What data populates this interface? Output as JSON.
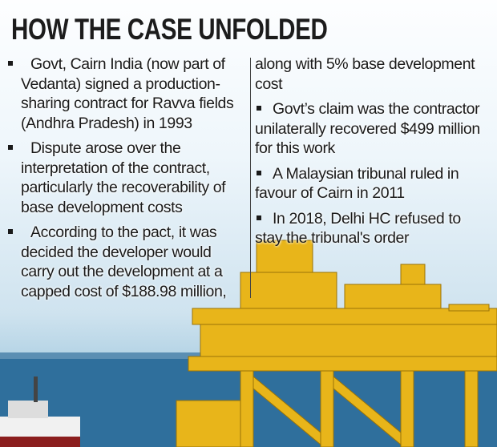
{
  "header": {
    "title": "HOW THE CASE UNFOLDED"
  },
  "left_column": {
    "items": [
      "Govt, Cairn India (now part of Vedanta) signed a production-sharing contract for Ravva fields (Andhra Pradesh) in 1993",
      "Dispute arose over the interpretation of the contract, particularly the recoverability of base development costs",
      "According to the pact, it was decided the developer would carry out the development at a capped cost of $188.98 million,"
    ]
  },
  "right_column": {
    "continuation": "along with 5% base development cost",
    "items": [
      "Govt’s claim was the contractor unilaterally recovered $499 million for this work",
      "A Malaysian tribunal ruled in favour of Cairn in 2011",
      "In 2018, Delhi HC refused to stay the tribunal's order"
    ]
  }
}
